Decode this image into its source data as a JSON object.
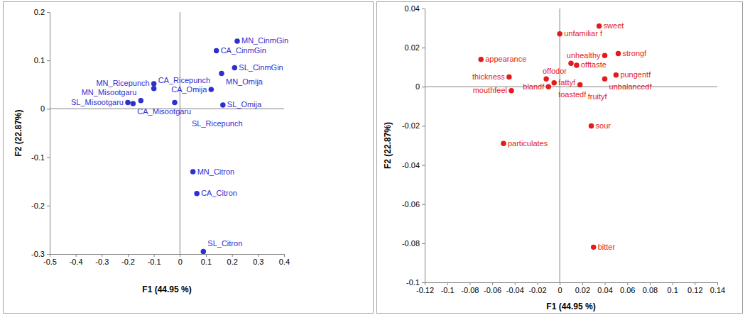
{
  "chart_data": [
    {
      "type": "scatter",
      "x_label": "F1 (44.95 %)",
      "y_label": "F2 (22.87%)",
      "color": "#2f2fd0",
      "marker": "circle",
      "xlim": [
        -0.5,
        0.4
      ],
      "xticks": [
        -0.5,
        -0.4,
        -0.3,
        -0.2,
        -0.1,
        0,
        0.1,
        0.2,
        0.3,
        0.4
      ],
      "ylim": [
        -0.3,
        0.2
      ],
      "yticks": [
        -0.3,
        -0.2,
        -0.1,
        0,
        0.1,
        0.2
      ],
      "point_labels": [
        "SL_Misootgaru",
        "CA_Misootgaru",
        "MN_Misootgaru",
        "MN_Ricepunch",
        "CA_Ricepunch",
        "SL_Ricepunch",
        "MN_CinmGin",
        "CA_CinmGin",
        "SL_CinmGin",
        "MN_Omija",
        "CA_Omija",
        "SL_Omija",
        "MN_Citron",
        "CA_Citron",
        "SL_Citron"
      ],
      "x": [
        -0.2,
        -0.18,
        -0.15,
        -0.1,
        -0.1,
        -0.02,
        0.22,
        0.14,
        0.21,
        0.16,
        0.12,
        0.165,
        0.05,
        0.065,
        0.09
      ],
      "values": [
        0.013,
        0.011,
        0.017,
        0.052,
        0.042,
        0.013,
        0.14,
        0.12,
        0.085,
        0.073,
        0.04,
        0.008,
        -0.13,
        -0.175,
        -0.295
      ]
    },
    {
      "type": "scatter",
      "x_label": "F1 (44.95 %)",
      "y_label": "F2 (22.87%)",
      "color": "#e41a1c",
      "marker": "circle",
      "xlim": [
        -0.12,
        0.14
      ],
      "xticks": [
        -0.12,
        -0.1,
        -0.08,
        -0.06,
        -0.04,
        -0.02,
        0,
        0.02,
        0.04,
        0.06,
        0.08,
        0.1,
        0.12,
        0.14
      ],
      "ylim": [
        -0.1,
        0.04
      ],
      "yticks": [
        -0.1,
        -0.08,
        -0.06,
        -0.04,
        -0.02,
        0,
        0.02,
        0.04
      ],
      "point_labels": [
        "appearance",
        "thickness",
        "mouthfeel",
        "particulates",
        "unfamiliar f",
        "sweet",
        "strongf",
        "unhealthy",
        "offodor",
        "offtaste",
        "pungentf",
        "unbalancedf",
        "toastedf",
        "fattyf",
        "blandf",
        "fruityf",
        "sour",
        "bitter"
      ],
      "x": [
        -0.07,
        -0.045,
        -0.043,
        -0.05,
        0,
        0.035,
        0.052,
        0.04,
        0.01,
        0.015,
        0.05,
        0.04,
        -0.012,
        -0.005,
        -0.01,
        0.018,
        0.028,
        0.03
      ],
      "values": [
        0.014,
        0.005,
        -0.002,
        -0.029,
        0.027,
        0.031,
        0.017,
        0.016,
        0.012,
        0.011,
        0.006,
        0.004,
        0.004,
        0.002,
        0,
        0.001,
        -0.02,
        -0.082
      ]
    }
  ]
}
